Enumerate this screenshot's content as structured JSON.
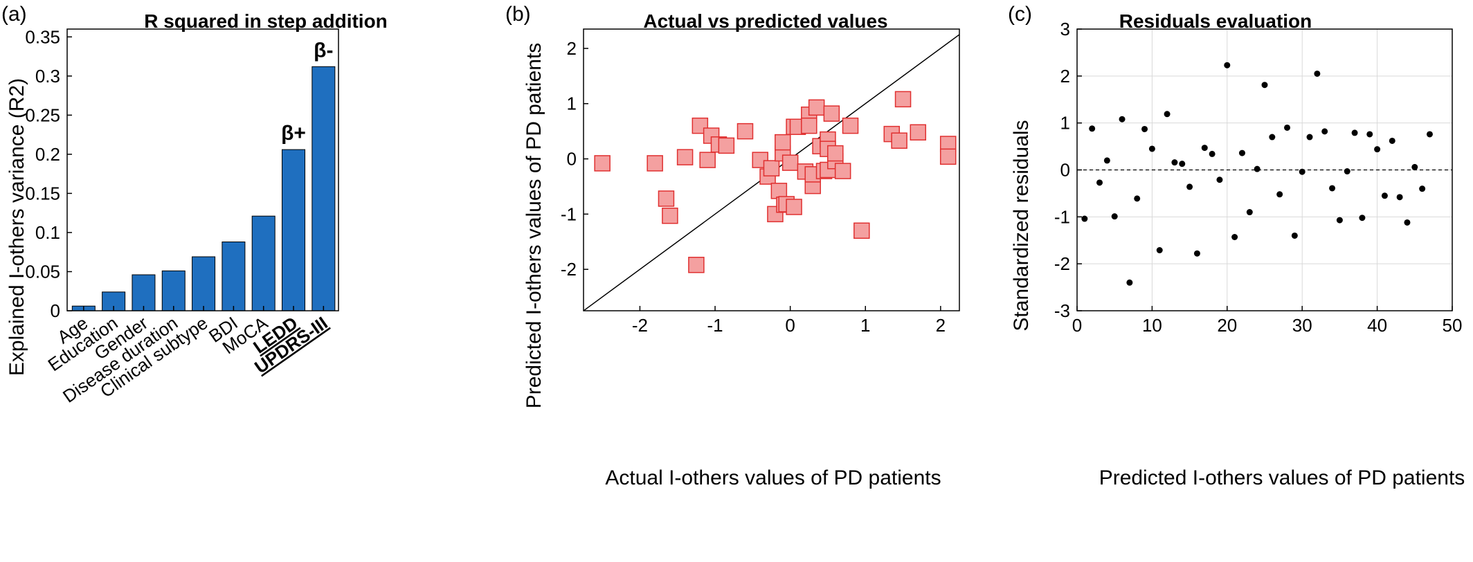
{
  "panels": [
    {
      "label": "(a)",
      "chart_data": {
        "type": "bar",
        "title": "R squared in step addition",
        "xlabel": "",
        "ylabel": "Explained I-others variance (R2)",
        "categories": [
          "Age",
          "Education",
          "Gender",
          "Disease duration",
          "Clinical subtype",
          "BDI",
          "MoCA",
          "LEDD",
          "UPDRS-III"
        ],
        "emphasized_categories": [
          "LEDD",
          "UPDRS-III"
        ],
        "values": [
          0.006,
          0.024,
          0.046,
          0.051,
          0.069,
          0.088,
          0.121,
          0.206,
          0.312
        ],
        "yticks": [
          "0",
          "0.05",
          "0.1",
          "0.15",
          "0.2",
          "0.25",
          "0.3",
          "0.35"
        ],
        "ylim": [
          0,
          0.36
        ],
        "bar_color": "#1f6fbf",
        "annotations": [
          {
            "category": "LEDD",
            "text": "β+"
          },
          {
            "category": "UPDRS-III",
            "text": "β-"
          }
        ],
        "grid": false
      }
    },
    {
      "label": "(b)",
      "chart_data": {
        "type": "scatter",
        "title": "Actual vs predicted values",
        "xlabel": "Actual I-others values of PD patients",
        "ylabel": "Predicted I-others values of PD patients",
        "xlim": [
          -2.75,
          2.25
        ],
        "ylim": [
          -2.75,
          2.35
        ],
        "xticks": [
          "-2",
          "-1",
          "0",
          "1",
          "2"
        ],
        "yticks": [
          "-2",
          "-1",
          "0",
          "1",
          "2"
        ],
        "identity_line": true,
        "marker": "square",
        "marker_color": "#f4a0a0",
        "marker_edge": "#e03030",
        "x": [
          -2.5,
          -1.8,
          -1.6,
          -1.4,
          -1.2,
          -1.1,
          -1.05,
          -0.95,
          -0.85,
          -0.6,
          -0.4,
          -0.3,
          -0.25,
          -0.2,
          -0.15,
          -0.1,
          -0.1,
          -0.08,
          -0.05,
          0.0,
          0.05,
          0.05,
          0.1,
          0.2,
          0.25,
          0.25,
          0.3,
          0.3,
          0.35,
          0.4,
          0.45,
          0.5,
          0.5,
          0.5,
          0.55,
          0.6,
          0.6,
          0.7,
          0.8,
          0.95,
          1.35,
          1.45,
          1.5,
          1.7,
          2.1,
          2.1,
          -1.65,
          -1.25
        ],
        "y": [
          -0.08,
          -0.08,
          -1.03,
          0.03,
          0.6,
          -0.02,
          0.42,
          0.26,
          0.24,
          0.5,
          -0.02,
          -0.32,
          -0.17,
          -1.0,
          -0.58,
          0.1,
          0.3,
          -0.83,
          -0.82,
          -0.07,
          0.58,
          -0.87,
          0.58,
          -0.23,
          0.8,
          0.6,
          -0.49,
          -0.28,
          0.93,
          0.23,
          -0.22,
          0.35,
          0.18,
          -0.2,
          0.82,
          -0.04,
          0.1,
          -0.22,
          0.6,
          -1.3,
          0.45,
          0.33,
          1.08,
          0.48,
          0.27,
          0.04,
          -0.72,
          -1.92
        ],
        "grid": false
      }
    },
    {
      "label": "(c)",
      "chart_data": {
        "type": "scatter",
        "title": "Residuals evaluation",
        "xlabel": "Predicted I-others values of PD patients",
        "ylabel": "Standardized residuals",
        "xlim": [
          0,
          50
        ],
        "ylim": [
          -3,
          3
        ],
        "xticks": [
          "0",
          "10",
          "20",
          "30",
          "40",
          "50"
        ],
        "yticks": [
          "-3",
          "-2",
          "-1",
          "0",
          "1",
          "2",
          "3"
        ],
        "zero_line": true,
        "marker": "dot",
        "marker_color": "#000000",
        "x": [
          1,
          2,
          3,
          4,
          5,
          6,
          7,
          8,
          9,
          10,
          11,
          12,
          13,
          14,
          15,
          16,
          17,
          18,
          19,
          20,
          21,
          22,
          23,
          24,
          25,
          26,
          27,
          28,
          29,
          30,
          31,
          32,
          33,
          34,
          35,
          36,
          37,
          38,
          39,
          40,
          41,
          42,
          43,
          44,
          45,
          46,
          47
        ],
        "y": [
          -1.04,
          0.88,
          -0.27,
          0.2,
          -0.99,
          1.08,
          -2.4,
          -0.61,
          0.87,
          0.45,
          -1.71,
          1.19,
          0.16,
          0.13,
          -0.36,
          -1.78,
          0.47,
          0.34,
          -0.21,
          2.23,
          -1.43,
          0.36,
          -0.9,
          0.02,
          1.81,
          0.7,
          -0.52,
          0.9,
          -1.4,
          -0.04,
          0.7,
          2.05,
          0.82,
          -0.39,
          -1.07,
          -0.03,
          0.79,
          -1.02,
          0.76,
          0.44,
          -0.55,
          0.62,
          -0.58,
          -1.12,
          0.06,
          -0.4,
          0.76
        ],
        "grid": true
      }
    }
  ]
}
